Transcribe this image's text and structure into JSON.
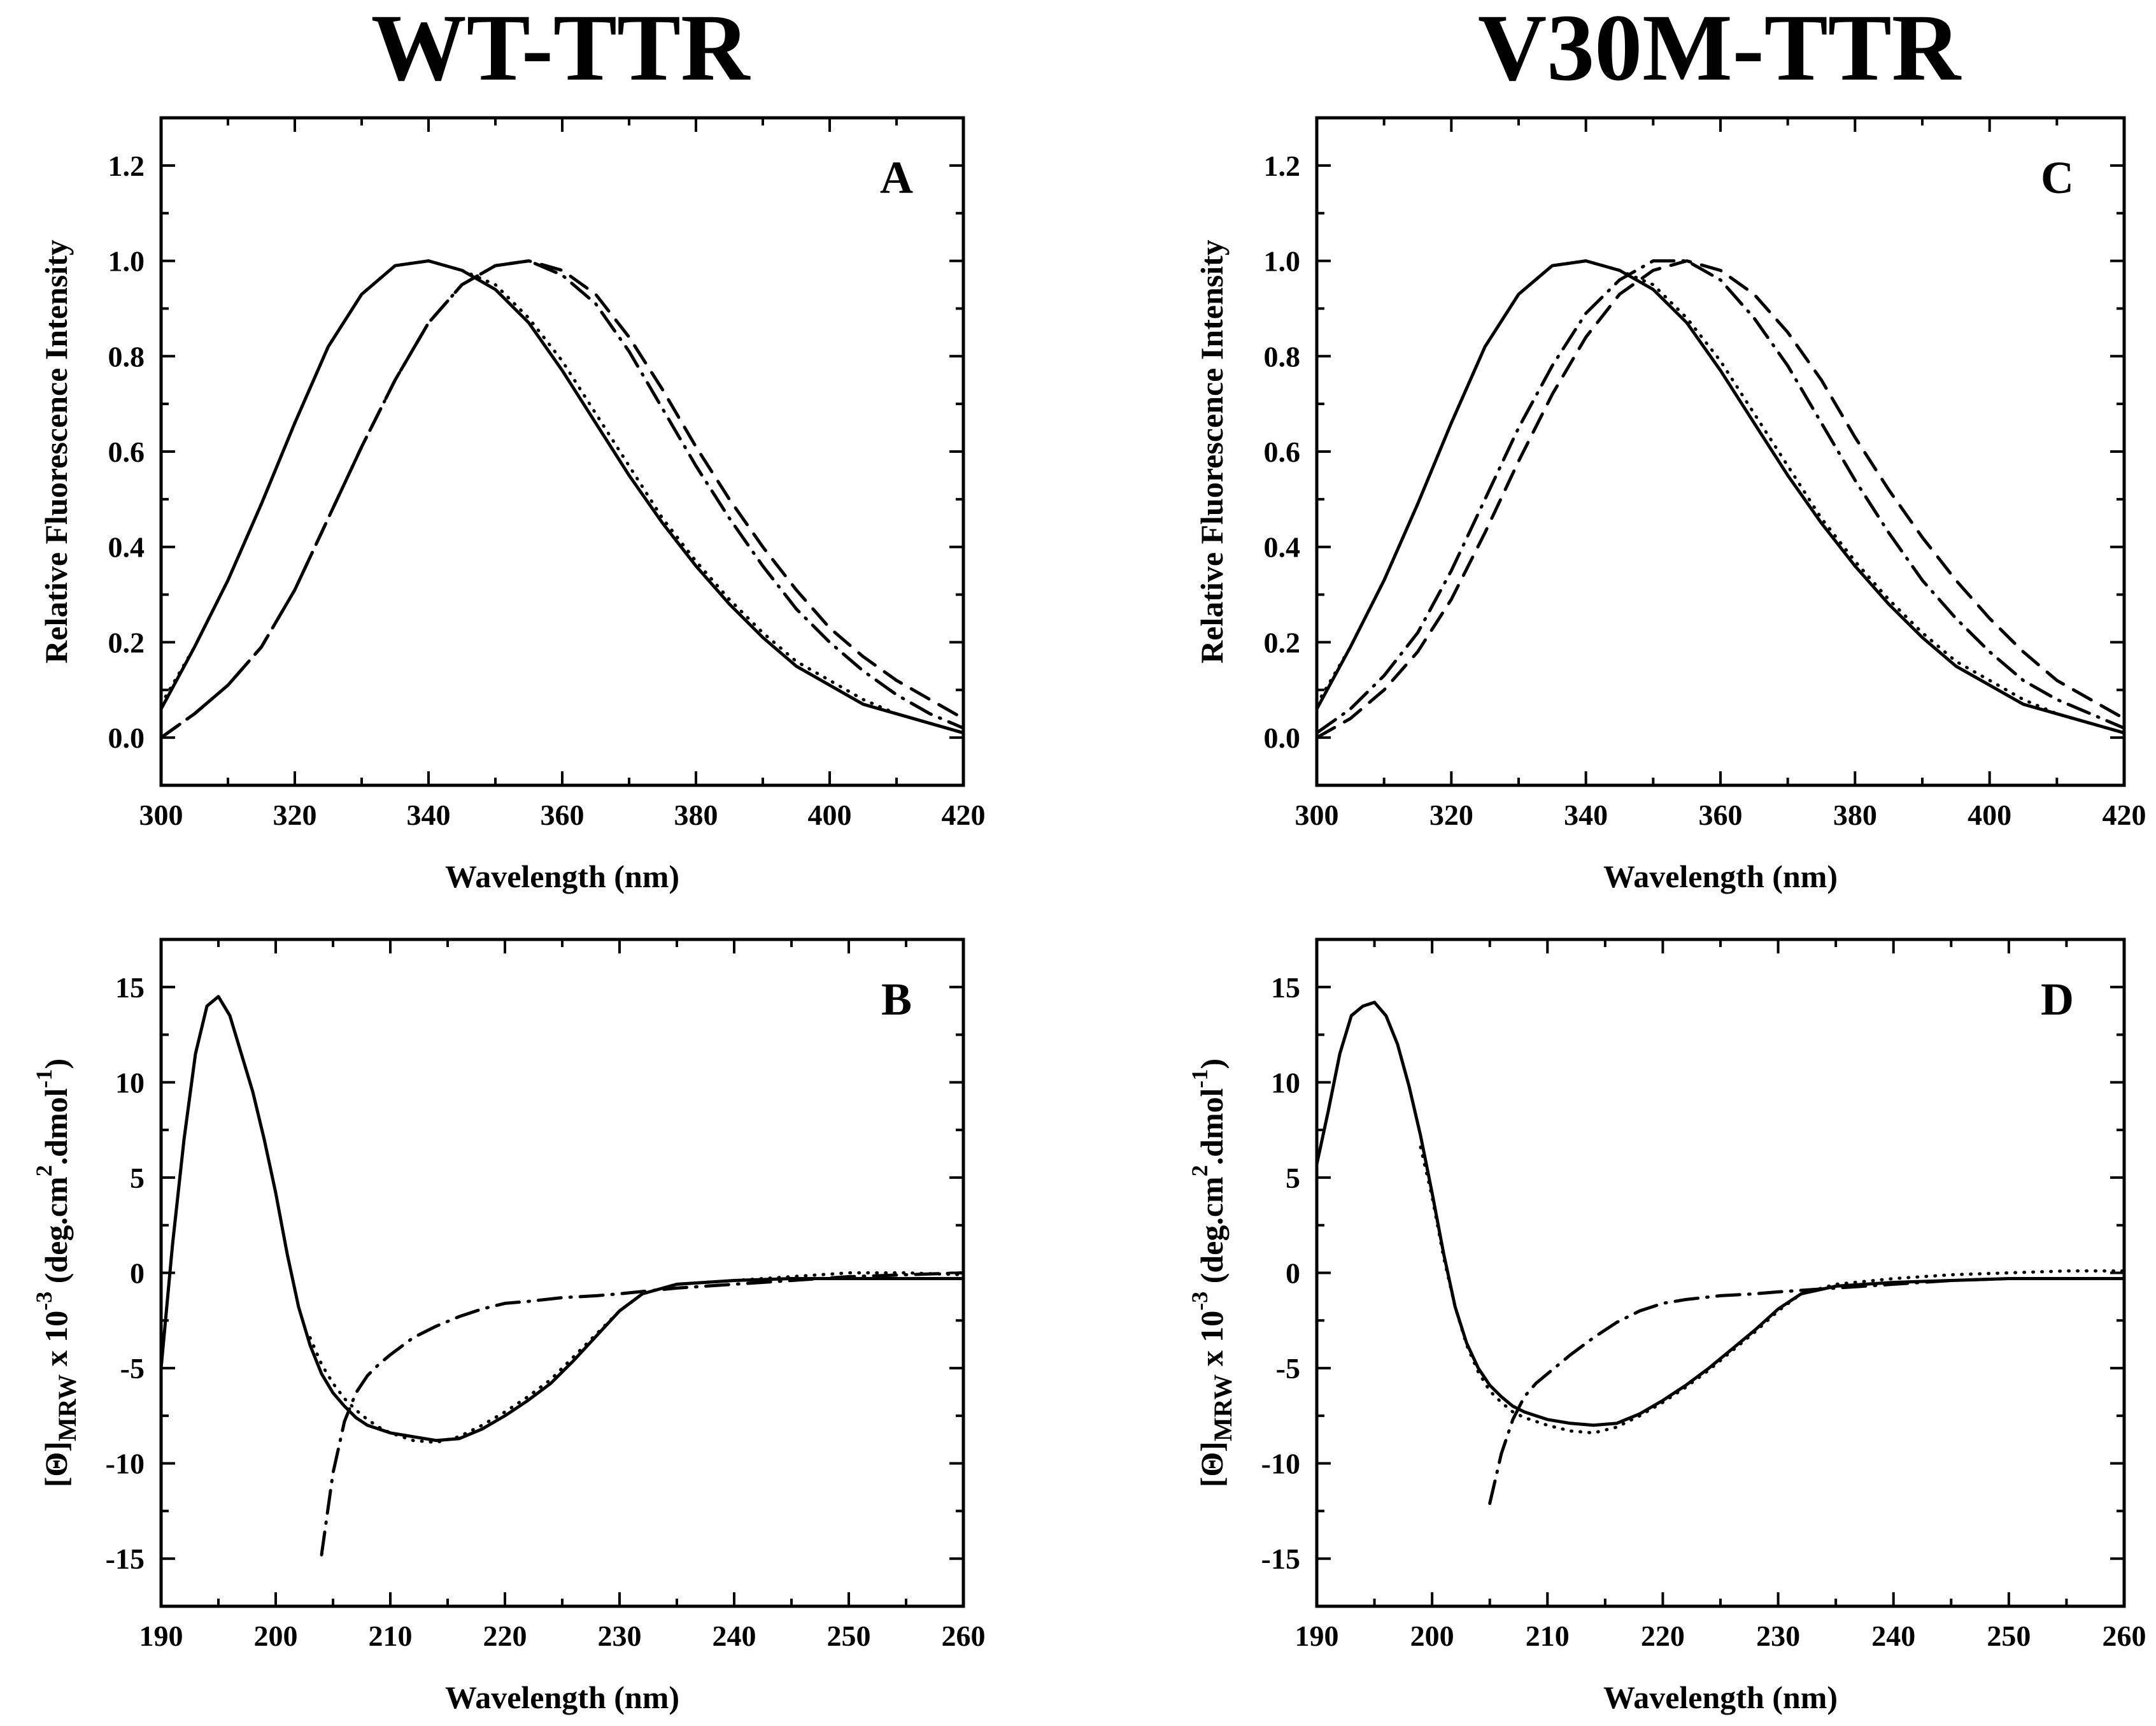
{
  "titles": {
    "left": "WT-TTR",
    "right": "V30M-TTR"
  },
  "chart_data": [
    {
      "id": "A",
      "type": "line",
      "panel_letter": "A",
      "xlabel": "Wavelength (nm)",
      "ylabel": "Relative Fluorescence Intensity",
      "xlim": [
        300,
        420
      ],
      "ylim": [
        -0.1,
        1.3
      ],
      "xticks": [
        300,
        320,
        340,
        360,
        380,
        400,
        420
      ],
      "xtick_labels": [
        "300",
        "320",
        "340",
        "360",
        "380",
        "400",
        "420"
      ],
      "yticks": [
        0.0,
        0.2,
        0.4,
        0.6,
        0.8,
        1.0,
        1.2
      ],
      "ytick_labels": [
        "0.0",
        "0.2",
        "0.4",
        "0.6",
        "0.8",
        "1.0",
        "1.2"
      ],
      "series": [
        {
          "name": "solid",
          "style": "solid",
          "x": [
            300,
            305,
            310,
            315,
            320,
            325,
            330,
            335,
            340,
            345,
            350,
            355,
            360,
            365,
            370,
            375,
            380,
            385,
            390,
            395,
            400,
            405,
            410,
            415,
            420
          ],
          "values": [
            0.06,
            0.19,
            0.33,
            0.49,
            0.66,
            0.82,
            0.93,
            0.99,
            1.0,
            0.98,
            0.94,
            0.87,
            0.77,
            0.66,
            0.55,
            0.45,
            0.36,
            0.28,
            0.21,
            0.15,
            0.11,
            0.07,
            0.05,
            0.03,
            0.01
          ]
        },
        {
          "name": "dotted",
          "style": "dotted",
          "x": [
            300,
            305,
            310,
            315,
            320,
            325,
            330,
            335,
            340,
            345,
            350,
            355,
            360,
            365,
            370,
            375,
            380,
            385,
            390,
            395,
            400,
            405,
            410,
            415,
            420
          ],
          "values": [
            0.07,
            0.19,
            0.33,
            0.49,
            0.66,
            0.82,
            0.93,
            0.99,
            1.0,
            0.98,
            0.95,
            0.88,
            0.79,
            0.68,
            0.57,
            0.46,
            0.37,
            0.29,
            0.22,
            0.16,
            0.12,
            0.08,
            0.05,
            0.03,
            0.01
          ]
        },
        {
          "name": "dash-dot",
          "style": "dashdot",
          "x": [
            300,
            305,
            310,
            315,
            320,
            325,
            330,
            335,
            340,
            345,
            350,
            355,
            360,
            365,
            370,
            375,
            380,
            385,
            390,
            395,
            400,
            405,
            410,
            415,
            420
          ],
          "values": [
            0.0,
            0.05,
            0.11,
            0.19,
            0.31,
            0.46,
            0.61,
            0.75,
            0.87,
            0.95,
            0.99,
            1.0,
            0.97,
            0.91,
            0.81,
            0.69,
            0.57,
            0.46,
            0.36,
            0.27,
            0.2,
            0.14,
            0.09,
            0.05,
            0.02
          ]
        },
        {
          "name": "dashed",
          "style": "dashed",
          "x": [
            300,
            305,
            310,
            315,
            320,
            325,
            330,
            335,
            340,
            345,
            350,
            355,
            360,
            365,
            370,
            375,
            380,
            385,
            390,
            395,
            400,
            405,
            410,
            415,
            420
          ],
          "values": [
            0.0,
            0.05,
            0.11,
            0.19,
            0.31,
            0.46,
            0.61,
            0.75,
            0.87,
            0.95,
            0.99,
            1.0,
            0.98,
            0.93,
            0.84,
            0.73,
            0.61,
            0.5,
            0.4,
            0.31,
            0.23,
            0.17,
            0.12,
            0.08,
            0.04
          ]
        }
      ]
    },
    {
      "id": "B",
      "type": "line",
      "panel_letter": "B",
      "xlabel": "Wavelength (nm)",
      "ylabel_parts": {
        "theta": "[Θ]",
        "sub": "MRW",
        "mid": " x 10",
        "exp": "-3",
        "paren": " (deg.cm",
        "sq": "2",
        "dmol": ".dmol",
        "inv": "-1",
        "close": ")"
      },
      "xlim": [
        190,
        260
      ],
      "ylim": [
        -17.5,
        17.5
      ],
      "xticks": [
        190,
        200,
        210,
        220,
        230,
        240,
        250,
        260
      ],
      "xtick_labels": [
        "190",
        "200",
        "210",
        "220",
        "230",
        "240",
        "250",
        "260"
      ],
      "yticks": [
        -15,
        -10,
        -5,
        0,
        5,
        10,
        15
      ],
      "ytick_labels": [
        "-15",
        "-10",
        "-5",
        "0",
        "5",
        "10",
        "15"
      ],
      "series": [
        {
          "name": "solid",
          "style": "solid",
          "x": [
            190,
            191,
            192,
            193,
            194,
            195,
            196,
            197,
            198,
            199,
            200,
            201,
            202,
            203,
            204,
            205,
            206,
            207,
            208,
            209,
            210,
            212,
            214,
            216,
            218,
            220,
            222,
            224,
            226,
            228,
            230,
            232,
            235,
            240,
            245,
            250,
            255,
            260
          ],
          "values": [
            -5.0,
            1.5,
            7.0,
            11.5,
            14.0,
            14.5,
            13.5,
            11.5,
            9.5,
            7.0,
            4.2,
            1.0,
            -1.8,
            -3.8,
            -5.3,
            -6.3,
            -7.0,
            -7.6,
            -8.0,
            -8.2,
            -8.4,
            -8.6,
            -8.8,
            -8.7,
            -8.2,
            -7.5,
            -6.7,
            -5.8,
            -4.6,
            -3.3,
            -2.0,
            -1.1,
            -0.6,
            -0.4,
            -0.3,
            -0.3,
            -0.3,
            -0.3
          ]
        },
        {
          "name": "dotted",
          "style": "dotted",
          "x": [
            203,
            204,
            205,
            206,
            207,
            208,
            209,
            210,
            212,
            214,
            216,
            218,
            220,
            222,
            224,
            226,
            228,
            230,
            232,
            235,
            240,
            245,
            250,
            255,
            260
          ],
          "values": [
            -3.4,
            -4.8,
            -5.8,
            -6.6,
            -7.2,
            -7.7,
            -8.1,
            -8.4,
            -8.8,
            -8.9,
            -8.6,
            -8.0,
            -7.3,
            -6.5,
            -5.6,
            -4.4,
            -3.2,
            -2.0,
            -1.1,
            -0.6,
            -0.4,
            -0.2,
            0.0,
            0.0,
            -0.1
          ]
        },
        {
          "name": "dash-dot",
          "style": "dashdot",
          "x": [
            204,
            205,
            206,
            207,
            208,
            209,
            210,
            212,
            214,
            216,
            218,
            220,
            222,
            225,
            228,
            230,
            235,
            240,
            245,
            250,
            255,
            260
          ],
          "values": [
            -14.8,
            -10.5,
            -7.8,
            -6.3,
            -5.4,
            -4.8,
            -4.3,
            -3.4,
            -2.8,
            -2.3,
            -1.9,
            -1.6,
            -1.5,
            -1.3,
            -1.2,
            -1.1,
            -0.8,
            -0.6,
            -0.4,
            -0.2,
            -0.1,
            0.0
          ]
        }
      ]
    },
    {
      "id": "C",
      "type": "line",
      "panel_letter": "C",
      "xlabel": "Wavelength (nm)",
      "ylabel": "Relative Fluorescence Intensity",
      "xlim": [
        300,
        420
      ],
      "ylim": [
        -0.1,
        1.3
      ],
      "xticks": [
        300,
        320,
        340,
        360,
        380,
        400,
        420
      ],
      "xtick_labels": [
        "300",
        "320",
        "340",
        "360",
        "380",
        "400",
        "420"
      ],
      "yticks": [
        0.0,
        0.2,
        0.4,
        0.6,
        0.8,
        1.0,
        1.2
      ],
      "ytick_labels": [
        "0.0",
        "0.2",
        "0.4",
        "0.6",
        "0.8",
        "1.0",
        "1.2"
      ],
      "series": [
        {
          "name": "solid",
          "style": "solid",
          "x": [
            300,
            305,
            310,
            315,
            320,
            325,
            330,
            335,
            340,
            345,
            350,
            355,
            360,
            365,
            370,
            375,
            380,
            385,
            390,
            395,
            400,
            405,
            410,
            415,
            420
          ],
          "values": [
            0.06,
            0.19,
            0.33,
            0.49,
            0.66,
            0.82,
            0.93,
            0.99,
            1.0,
            0.98,
            0.94,
            0.87,
            0.77,
            0.66,
            0.55,
            0.45,
            0.36,
            0.28,
            0.21,
            0.15,
            0.11,
            0.07,
            0.05,
            0.03,
            0.01
          ]
        },
        {
          "name": "dotted",
          "style": "dotted",
          "x": [
            300,
            305,
            310,
            315,
            320,
            325,
            330,
            335,
            340,
            345,
            350,
            355,
            360,
            365,
            370,
            375,
            380,
            385,
            390,
            395,
            400,
            405,
            410,
            415,
            420
          ],
          "values": [
            0.07,
            0.19,
            0.33,
            0.49,
            0.66,
            0.82,
            0.93,
            0.99,
            1.0,
            0.98,
            0.95,
            0.88,
            0.79,
            0.68,
            0.57,
            0.46,
            0.37,
            0.29,
            0.22,
            0.16,
            0.12,
            0.08,
            0.05,
            0.03,
            0.01
          ]
        },
        {
          "name": "dash-dot",
          "style": "dashdot",
          "x": [
            300,
            305,
            310,
            315,
            320,
            325,
            330,
            335,
            340,
            345,
            350,
            355,
            360,
            365,
            370,
            375,
            380,
            385,
            390,
            395,
            400,
            405,
            410,
            415,
            420
          ],
          "values": [
            0.01,
            0.06,
            0.13,
            0.22,
            0.35,
            0.5,
            0.65,
            0.78,
            0.89,
            0.96,
            1.0,
            1.0,
            0.96,
            0.88,
            0.78,
            0.66,
            0.54,
            0.43,
            0.33,
            0.25,
            0.18,
            0.12,
            0.08,
            0.05,
            0.02
          ]
        },
        {
          "name": "dashed",
          "style": "dashed",
          "x": [
            300,
            305,
            310,
            315,
            320,
            325,
            330,
            335,
            340,
            345,
            350,
            355,
            360,
            365,
            370,
            375,
            380,
            385,
            390,
            395,
            400,
            405,
            410,
            415,
            420
          ],
          "values": [
            0.0,
            0.04,
            0.1,
            0.18,
            0.29,
            0.43,
            0.58,
            0.72,
            0.84,
            0.93,
            0.98,
            1.0,
            0.98,
            0.93,
            0.85,
            0.75,
            0.63,
            0.52,
            0.42,
            0.33,
            0.25,
            0.18,
            0.12,
            0.08,
            0.04
          ]
        }
      ]
    },
    {
      "id": "D",
      "type": "line",
      "panel_letter": "D",
      "xlabel": "Wavelength (nm)",
      "ylabel_parts": {
        "theta": "[Θ]",
        "sub": "MRW",
        "mid": " x 10",
        "exp": "-3",
        "paren": " (deg.cm",
        "sq": "2",
        "dmol": ".dmol",
        "inv": "-1",
        "close": ")"
      },
      "xlim": [
        190,
        260
      ],
      "ylim": [
        -17.5,
        17.5
      ],
      "xticks": [
        190,
        200,
        210,
        220,
        230,
        240,
        250,
        260
      ],
      "xtick_labels": [
        "190",
        "200",
        "210",
        "220",
        "230",
        "240",
        "250",
        "260"
      ],
      "yticks": [
        -15,
        -10,
        -5,
        0,
        5,
        10,
        15
      ],
      "ytick_labels": [
        "-15",
        "-10",
        "-5",
        "0",
        "5",
        "10",
        "15"
      ],
      "series": [
        {
          "name": "solid",
          "style": "solid",
          "x": [
            190,
            191,
            192,
            193,
            194,
            195,
            196,
            197,
            198,
            199,
            200,
            201,
            202,
            203,
            204,
            205,
            206,
            207,
            208,
            209,
            210,
            212,
            214,
            216,
            218,
            220,
            222,
            224,
            226,
            228,
            230,
            232,
            235,
            240,
            245,
            250,
            255,
            260
          ],
          "values": [
            5.7,
            8.5,
            11.5,
            13.5,
            14.0,
            14.2,
            13.5,
            12.0,
            9.8,
            7.2,
            4.2,
            1.0,
            -1.8,
            -3.7,
            -5.0,
            -5.9,
            -6.5,
            -7.0,
            -7.3,
            -7.5,
            -7.7,
            -7.9,
            -8.0,
            -7.9,
            -7.4,
            -6.7,
            -5.9,
            -5.0,
            -4.0,
            -3.0,
            -1.9,
            -1.1,
            -0.7,
            -0.5,
            -0.4,
            -0.3,
            -0.3,
            -0.3
          ]
        },
        {
          "name": "dotted",
          "style": "dotted",
          "x": [
            199,
            200,
            201,
            202,
            203,
            204,
            205,
            206,
            207,
            208,
            209,
            210,
            212,
            214,
            216,
            218,
            220,
            222,
            224,
            226,
            228,
            230,
            232,
            235,
            240,
            245,
            250,
            255,
            260
          ],
          "values": [
            6.6,
            4.0,
            0.8,
            -1.8,
            -3.8,
            -5.2,
            -6.2,
            -6.8,
            -7.3,
            -7.6,
            -7.8,
            -8.0,
            -8.3,
            -8.4,
            -8.1,
            -7.5,
            -6.8,
            -6.0,
            -5.1,
            -4.1,
            -3.1,
            -2.0,
            -1.1,
            -0.6,
            -0.3,
            -0.1,
            0.0,
            0.1,
            0.1
          ]
        },
        {
          "name": "dash-dot",
          "style": "dashdot",
          "x": [
            205,
            206,
            207,
            208,
            209,
            210,
            212,
            214,
            216,
            218,
            220,
            222,
            225,
            228,
            230,
            235,
            240,
            245,
            250,
            255,
            260
          ],
          "values": [
            -12.1,
            -9.5,
            -7.7,
            -6.5,
            -5.8,
            -5.3,
            -4.3,
            -3.4,
            -2.6,
            -2.0,
            -1.6,
            -1.4,
            -1.2,
            -1.1,
            -1.0,
            -0.8,
            -0.6,
            -0.4,
            -0.3,
            -0.3,
            -0.3
          ]
        }
      ]
    }
  ]
}
